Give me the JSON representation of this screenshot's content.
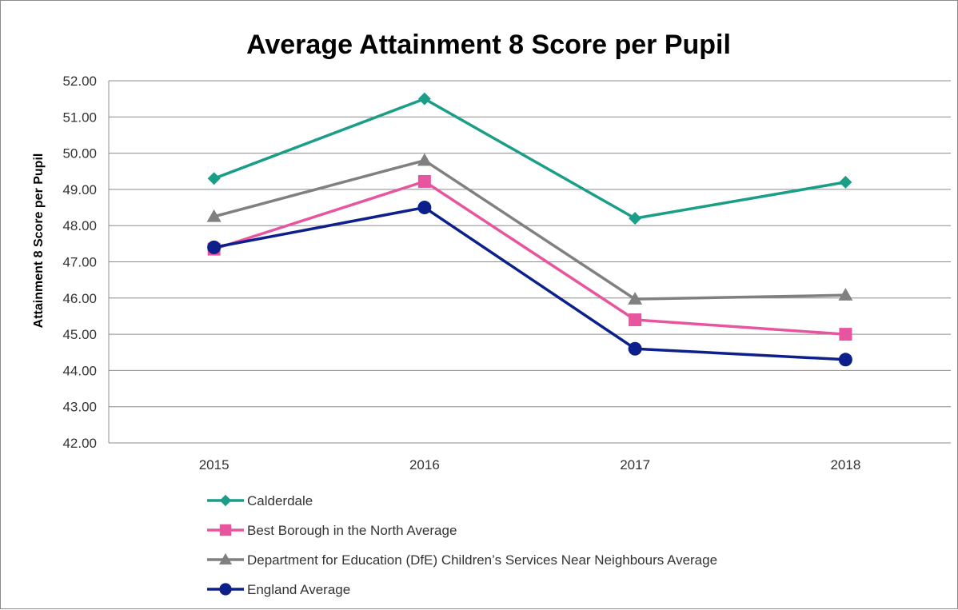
{
  "chart_data": {
    "type": "line",
    "title": "Average Attainment 8 Score per Pupil",
    "xlabel": "",
    "ylabel": "Attainment 8 Score per Pupil",
    "categories": [
      "2015",
      "2016",
      "2017",
      "2018"
    ],
    "ylim": [
      42.0,
      52.0
    ],
    "ytick_step": 1.0,
    "ytick_labels": [
      "42.00",
      "43.00",
      "44.00",
      "45.00",
      "46.00",
      "47.00",
      "48.00",
      "49.00",
      "50.00",
      "51.00",
      "52.00"
    ],
    "grid": "horizontal",
    "legend_position": "bottom-left",
    "series": [
      {
        "name": "Calderdale",
        "values": [
          49.3,
          51.5,
          48.2,
          49.2
        ],
        "color": "#1a9e87",
        "marker": "diamond"
      },
      {
        "name": "Best Borough in the North Average",
        "values": [
          47.35,
          49.22,
          45.4,
          45.0
        ],
        "color": "#e8559f",
        "marker": "square"
      },
      {
        "name": "Department for Education (DfE) Children’s Services Near Neighbours Average",
        "values": [
          48.25,
          49.8,
          45.97,
          46.08
        ],
        "color": "#808080",
        "marker": "triangle"
      },
      {
        "name": "England Average",
        "values": [
          47.4,
          48.5,
          44.6,
          44.3
        ],
        "color": "#0d1f8a",
        "marker": "circle"
      }
    ]
  }
}
